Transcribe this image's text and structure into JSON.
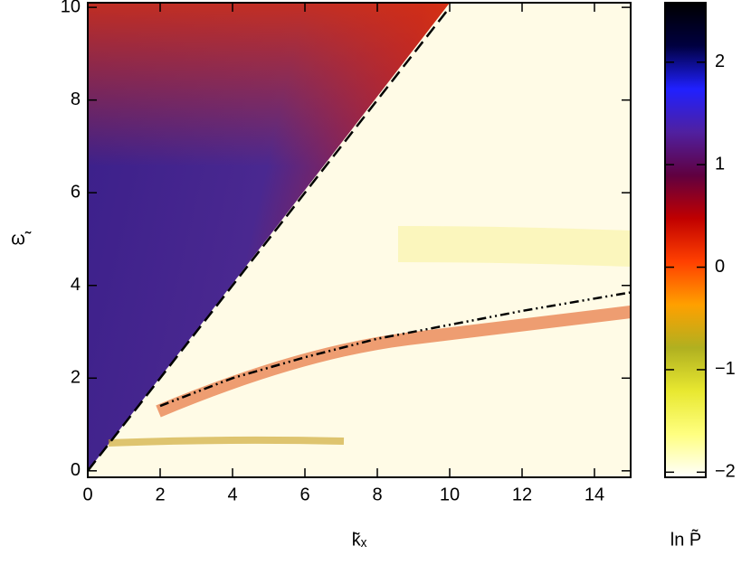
{
  "chart_data": {
    "type": "heatmap",
    "xlabel": "k̃ₓ",
    "ylabel": "ω̃",
    "xlim": [
      0,
      15
    ],
    "ylim": [
      -0.14,
      10.1
    ],
    "xticks": [
      0,
      2,
      4,
      6,
      8,
      10,
      12,
      14
    ],
    "yticks": [
      0,
      2,
      4,
      6,
      8,
      10
    ],
    "lines": [
      {
        "x": [
          0,
          10
        ],
        "values": [
          0,
          10
        ],
        "style": "dashed",
        "color": "#000000"
      },
      {
        "x": [
          2,
          4,
          6,
          8,
          10,
          12,
          15
        ],
        "values": [
          1.4,
          2,
          2.45,
          2.85,
          3.15,
          3.45,
          3.85
        ],
        "style": "dash-dot",
        "color": "#000000"
      }
    ],
    "colorbar": {
      "label": "ln P̃",
      "lim": [
        -2.05,
        2.58
      ],
      "ticks": [
        {
          "value": -2,
          "label": "−2"
        },
        {
          "value": -1,
          "label": "−1"
        },
        0,
        1,
        2
      ],
      "colormap": [
        "#ffffff",
        "#ffff80",
        "#e8e830",
        "#b0b020",
        "#ffa000",
        "#ff4000",
        "#c00000",
        "#600040",
        "#5020a0",
        "#2020ff",
        "#000040",
        "#000000"
      ]
    }
  }
}
